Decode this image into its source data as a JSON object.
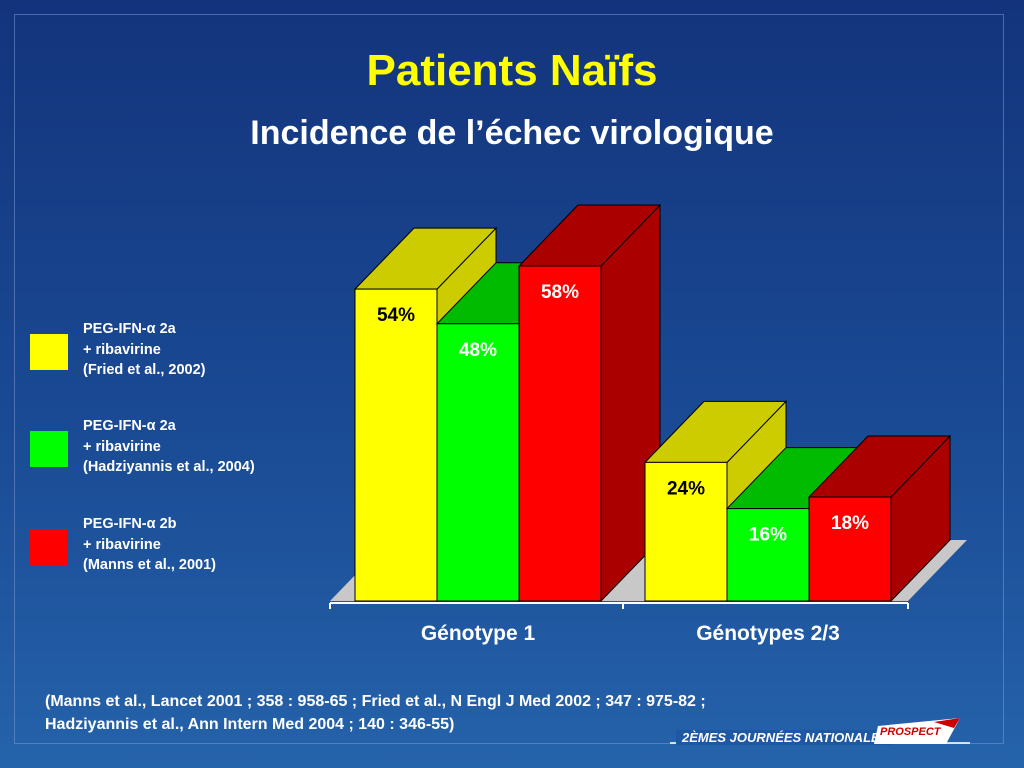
{
  "title": "Patients Naïfs",
  "subtitle": "Incidence de l’échec virologique",
  "colors": {
    "series1_front": "#ffff00",
    "series1_top": "#cccc00",
    "series1_side": "#cccc00",
    "series2_front": "#00ff00",
    "series2_top": "#00bb00",
    "series2_side": "#00aa00",
    "series3_front": "#ff0000",
    "series3_top": "#aa0000",
    "series3_side": "#aa0000",
    "floor": "#c8c8c8"
  },
  "legend": [
    {
      "line1_pre": "PEG-IFN-",
      "alpha": "α",
      "line1_post": " 2a",
      "line2": "+ ribavirine",
      "line3": "(Fried et al., 2002)",
      "color": "#ffff00"
    },
    {
      "line1_pre": "PEG-IFN-",
      "alpha": "α",
      "line1_post": " 2a",
      "line2": "+ ribavirine",
      "line3": "(Hadziyannis et al., 2004)",
      "color": "#00ff00"
    },
    {
      "line1_pre": "PEG-IFN-",
      "alpha": "α",
      "line1_post": " 2b",
      "line2": "+ ribavirine",
      "line3": "(Manns et al., 2001)",
      "color": "#ff0000"
    }
  ],
  "chart_data": {
    "type": "bar",
    "categories": [
      "Génotype 1",
      "Génotypes 2/3"
    ],
    "series": [
      {
        "name": "PEG-IFN-α 2a + ribavirine (Fried et al., 2002)",
        "values": [
          54,
          24
        ],
        "labels": [
          "54%",
          "24%"
        ]
      },
      {
        "name": "PEG-IFN-α 2a + ribavirine (Hadziyannis et al., 2004)",
        "values": [
          48,
          16
        ],
        "labels": [
          "48%",
          "16%"
        ]
      },
      {
        "name": "PEG-IFN-α 2b + ribavirine (Manns et al., 2001)",
        "values": [
          58,
          18
        ],
        "labels": [
          "58%",
          "18%"
        ]
      }
    ],
    "ylim": [
      0,
      58
    ],
    "grid": false,
    "legend": "left",
    "style": "3d"
  },
  "citation": {
    "line1": "(Manns et al., Lancet 2001 ; 358 : 958-65 ; Fried et al., N Engl J Med 2002 ; 347 : 975-82 ;",
    "line2": "Hadziyannis et al., Ann Intern Med 2004 ; 140 : 346-55)"
  },
  "footer": {
    "text": "2ÈMES JOURNÉES NATIONALES",
    "logo": "PROSPECT"
  }
}
